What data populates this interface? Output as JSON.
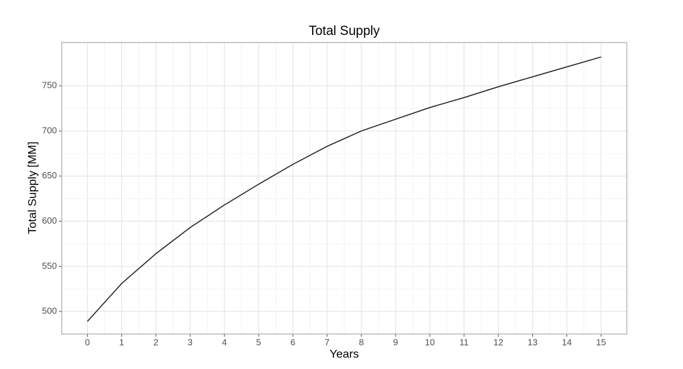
{
  "chart_data": {
    "type": "line",
    "title": "Total Supply",
    "x_label": "Years",
    "y_label": "Total Supply [MM]",
    "x": [
      0,
      1,
      2,
      3,
      4,
      5,
      6,
      7,
      8,
      9,
      10,
      11,
      12,
      13,
      14,
      15
    ],
    "series": [
      {
        "name": "Total Supply",
        "color": "#222222",
        "values": [
          489,
          531,
          564,
          593,
          618,
          641,
          663,
          683,
          700,
          713,
          726,
          737,
          749,
          760,
          771,
          782
        ]
      }
    ],
    "xlim": [
      -0.75,
      15.75
    ],
    "xticks": [
      0,
      1,
      2,
      3,
      4,
      5,
      6,
      7,
      8,
      9,
      10,
      11,
      12,
      13,
      14,
      15
    ],
    "ylim": [
      475,
      798
    ],
    "yticks": [
      500,
      550,
      600,
      650,
      700,
      750
    ],
    "grid": true,
    "minor_grid": true,
    "legend": false
  }
}
